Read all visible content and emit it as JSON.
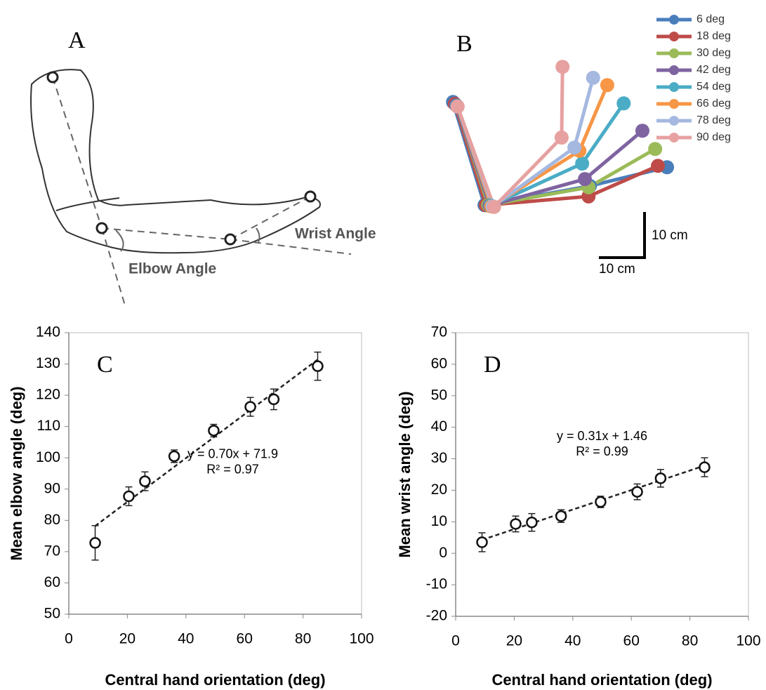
{
  "panel_a": {
    "panel_label": "A",
    "wrist_label": "Wrist Angle",
    "elbow_label": "Elbow Angle"
  },
  "chart_data": [
    {
      "type": "line",
      "panel_label": "B",
      "legend": "top-right",
      "scale_bar": {
        "length": 10,
        "y_label": "10 cm",
        "x_label": "10 cm"
      },
      "series": [
        {
          "name": "6 deg",
          "color": "#4a7ebb",
          "x": [
            0.8,
            7.7,
            30.8,
            47.7
          ],
          "values": [
            33.8,
            11.2,
            15.4,
            19.5
          ]
        },
        {
          "name": "18 deg",
          "color": "#be4b48",
          "x": [
            1.2,
            8.0,
            30.5,
            45.7
          ],
          "values": [
            33.4,
            11.2,
            13.1,
            19.8
          ]
        },
        {
          "name": "30 deg",
          "color": "#9bbb59",
          "x": [
            1.5,
            8.5,
            30.5,
            45.1
          ],
          "values": [
            33.1,
            11.2,
            15.1,
            23.5
          ]
        },
        {
          "name": "42 deg",
          "color": "#7f63a1",
          "x": [
            1.5,
            8.8,
            29.7,
            42.3
          ],
          "values": [
            33.1,
            11.1,
            16.9,
            27.5
          ]
        },
        {
          "name": "54 deg",
          "color": "#4bacc6",
          "x": [
            1.7,
            9.1,
            29.1,
            38.2
          ],
          "values": [
            32.9,
            11.1,
            20.3,
            33.5
          ]
        },
        {
          "name": "66 deg",
          "color": "#f79646",
          "x": [
            1.8,
            9.2,
            28.5,
            34.6
          ],
          "values": [
            32.8,
            10.9,
            23.1,
            37.5
          ]
        },
        {
          "name": "78 deg",
          "color": "#a5b8e0",
          "x": [
            1.8,
            9.5,
            27.4,
            31.5
          ],
          "values": [
            32.8,
            10.9,
            23.8,
            39.1
          ]
        },
        {
          "name": "90 deg",
          "color": "#e6a1a0",
          "x": [
            1.8,
            9.8,
            24.6,
            24.8
          ],
          "values": [
            32.8,
            10.8,
            26.0,
            41.5
          ]
        }
      ]
    },
    {
      "type": "scatter",
      "panel_label": "C",
      "x_label": "Central hand orientation (deg)",
      "y_label": "Mean elbow angle (deg)",
      "xlim": [
        0,
        100
      ],
      "xticks": [
        0,
        20,
        40,
        60,
        80,
        100
      ],
      "ylim": [
        50,
        140
      ],
      "yticks": [
        50,
        60,
        70,
        80,
        90,
        100,
        110,
        120,
        130,
        140
      ],
      "trendline": {
        "slope": 0.7,
        "intercept": 71.9
      },
      "trendline_label": "y = 0.70x + 71.9",
      "r2_label": "R² = 0.97",
      "series": [
        {
          "x": [
            9,
            20.5,
            26,
            36,
            49.5,
            62,
            70,
            85
          ],
          "values": [
            72.8,
            87.7,
            92.5,
            100.5,
            108.7,
            116.3,
            118.7,
            129.3
          ],
          "y_errors": [
            5.5,
            3,
            3,
            2,
            2,
            3,
            3.3,
            4.5
          ],
          "x_errors": [
            1,
            1.5,
            1.5,
            1.5,
            1.5,
            1.5,
            1.5,
            1.5
          ]
        }
      ]
    },
    {
      "type": "scatter",
      "panel_label": "D",
      "x_label": "Central hand orientation (deg)",
      "y_label": "Mean wrist angle (deg)",
      "xlim": [
        0,
        100
      ],
      "xticks": [
        0,
        20,
        40,
        60,
        80,
        100
      ],
      "ylim": [
        -20,
        70
      ],
      "yticks": [
        -20,
        -10,
        0,
        10,
        20,
        30,
        40,
        50,
        60,
        70
      ],
      "trendline": {
        "slope": 0.31,
        "intercept": 1.46
      },
      "trendline_label": "y = 0.31x + 1.46",
      "r2_label": "R² = 0.99",
      "series": [
        {
          "x": [
            9,
            20.5,
            26,
            36,
            49.5,
            62,
            70,
            85
          ],
          "values": [
            3.5,
            9.3,
            9.8,
            11.8,
            16.3,
            19.5,
            23.8,
            27.3
          ],
          "y_errors": [
            3,
            2.5,
            2.8,
            2,
            1.8,
            2.5,
            2.8,
            3
          ],
          "x_errors": [
            1,
            1.5,
            1.5,
            1.5,
            1.5,
            1.5,
            1.5,
            1.5
          ]
        }
      ]
    }
  ]
}
